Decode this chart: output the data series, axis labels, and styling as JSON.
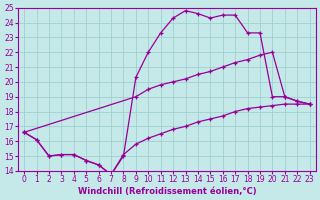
{
  "xlabel": "Windchill (Refroidissement éolien,°C)",
  "xlim": [
    -0.5,
    23.5
  ],
  "ylim": [
    14,
    25
  ],
  "yticks": [
    14,
    15,
    16,
    17,
    18,
    19,
    20,
    21,
    22,
    23,
    24,
    25
  ],
  "xticks": [
    0,
    1,
    2,
    3,
    4,
    5,
    6,
    7,
    8,
    9,
    10,
    11,
    12,
    13,
    14,
    15,
    16,
    17,
    18,
    19,
    20,
    21,
    22,
    23
  ],
  "bg_color": "#c5e8e8",
  "line_color": "#990099",
  "grid_color": "#99cccc",
  "curve_arch": {
    "x": [
      0,
      1,
      2,
      3,
      4,
      5,
      6,
      7,
      8,
      9,
      10,
      11,
      12,
      13,
      14,
      15,
      16,
      17,
      18,
      19,
      20,
      21,
      22,
      23
    ],
    "y": [
      16.6,
      16.1,
      15.0,
      15.1,
      15.1,
      14.7,
      14.4,
      13.75,
      15.0,
      20.3,
      22.0,
      23.3,
      24.3,
      24.8,
      24.6,
      24.3,
      24.5,
      24.5,
      23.3,
      23.3,
      19.0,
      19.0,
      18.7,
      18.5
    ]
  },
  "curve_diag": {
    "x": [
      0,
      9,
      10,
      11,
      12,
      13,
      14,
      15,
      16,
      17,
      18,
      19,
      20,
      21,
      22,
      23
    ],
    "y": [
      16.6,
      19.0,
      19.5,
      19.8,
      20.0,
      20.2,
      20.5,
      20.7,
      21.0,
      21.3,
      21.5,
      21.8,
      22.0,
      19.0,
      18.7,
      18.5
    ]
  },
  "curve_bot": {
    "x": [
      0,
      1,
      2,
      3,
      4,
      5,
      6,
      7,
      8,
      9,
      10,
      11,
      12,
      13,
      14,
      15,
      16,
      17,
      18,
      19,
      20,
      21,
      22,
      23
    ],
    "y": [
      16.6,
      16.1,
      15.0,
      15.1,
      15.1,
      14.7,
      14.4,
      13.75,
      15.1,
      15.8,
      16.2,
      16.5,
      16.8,
      17.0,
      17.3,
      17.5,
      17.7,
      18.0,
      18.2,
      18.3,
      18.4,
      18.5,
      18.5,
      18.5
    ]
  }
}
